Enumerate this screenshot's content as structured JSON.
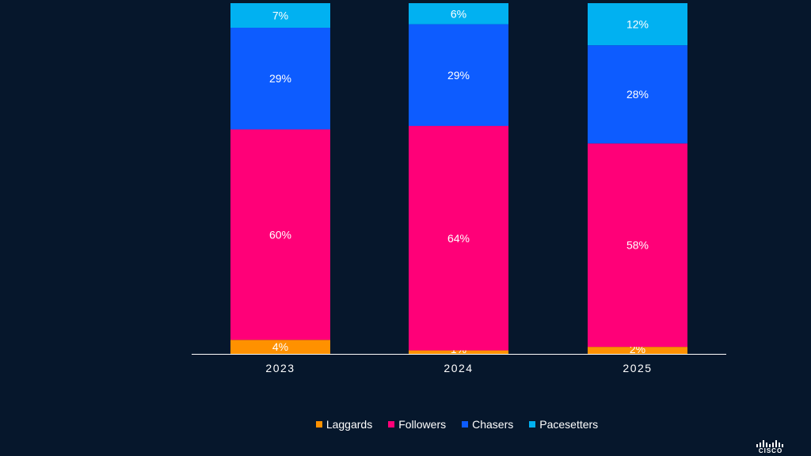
{
  "chart_data": {
    "type": "bar",
    "stacked": true,
    "title": "",
    "xlabel": "",
    "ylabel": "",
    "ylim": [
      0,
      100
    ],
    "categories": [
      "2023",
      "2024",
      "2025"
    ],
    "series": [
      {
        "name": "Laggards",
        "color": "#ff9100",
        "values": [
          4,
          1,
          2
        ],
        "labels": [
          "4%",
          "1%",
          "2%"
        ]
      },
      {
        "name": "Followers",
        "color": "#ff0078",
        "values": [
          60,
          64,
          58
        ],
        "labels": [
          "60%",
          "64%",
          "58%"
        ]
      },
      {
        "name": "Chasers",
        "color": "#0d5cff",
        "values": [
          29,
          29,
          28
        ],
        "labels": [
          "29%",
          "29%",
          "28%"
        ]
      },
      {
        "name": "Pacesetters",
        "color": "#01b1f1",
        "values": [
          7,
          6,
          12
        ],
        "labels": [
          "7%",
          "6%",
          "12%"
        ]
      }
    ],
    "legend": {
      "position": "bottom-center"
    }
  },
  "legend_items": [
    {
      "label": "Laggards",
      "color": "#ff9100"
    },
    {
      "label": "Followers",
      "color": "#ff0078"
    },
    {
      "label": "Chasers",
      "color": "#0d5cff"
    },
    {
      "label": "Pacesetters",
      "color": "#01b1f1"
    }
  ],
  "logo": {
    "text": "CISCO",
    "icon": "cisco-logo-icon"
  },
  "colors": {
    "background": "#06172c",
    "axis": "#ffffff"
  }
}
